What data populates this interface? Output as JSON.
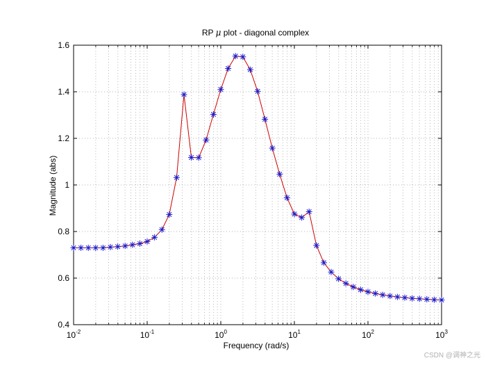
{
  "chart_data": {
    "type": "line",
    "title_prefix": "RP ",
    "title_mu": "μ",
    "title_suffix": " plot - diagonal complex",
    "xlabel": "Frequency  (rad/s)",
    "ylabel": "Magnitude (abs)",
    "xscale": "log",
    "xlim": [
      0.01,
      1000
    ],
    "ylim": [
      0.4,
      1.6
    ],
    "grid": true,
    "x_tick_exponents": [
      "-2",
      "-1",
      "0",
      "1",
      "2",
      "3"
    ],
    "x_tick_base": "10",
    "y_ticks": [
      "0.4",
      "0.6",
      "0.8",
      "1",
      "1.2",
      "1.4",
      "1.6"
    ],
    "series": [
      {
        "name": "mu",
        "line_color": "#cc0000",
        "marker_color": "#1a1acc",
        "marker": "asterisk",
        "x": [
          0.01,
          0.01259,
          0.01585,
          0.01995,
          0.02512,
          0.03162,
          0.03981,
          0.05012,
          0.0631,
          0.07943,
          0.1,
          0.1259,
          0.1585,
          0.1995,
          0.2512,
          0.3162,
          0.3981,
          0.5012,
          0.631,
          0.7943,
          1.0,
          1.259,
          1.585,
          1.995,
          2.512,
          3.162,
          3.981,
          5.012,
          6.31,
          7.943,
          10.0,
          12.59,
          15.85,
          19.95,
          25.12,
          31.62,
          39.81,
          50.12,
          63.1,
          79.43,
          100.0,
          125.9,
          158.5,
          199.5,
          251.2,
          316.2,
          398.1,
          501.2,
          631.0,
          794.3,
          1000.0
        ],
        "y": [
          0.73,
          0.73,
          0.73,
          0.73,
          0.73,
          0.733,
          0.735,
          0.738,
          0.743,
          0.748,
          0.757,
          0.775,
          0.808,
          0.873,
          1.032,
          1.388,
          1.118,
          1.117,
          1.193,
          1.303,
          1.41,
          1.5,
          1.553,
          1.55,
          1.495,
          1.402,
          1.282,
          1.158,
          1.046,
          0.945,
          0.875,
          0.86,
          0.885,
          0.74,
          0.666,
          0.626,
          0.597,
          0.577,
          0.562,
          0.55,
          0.541,
          0.534,
          0.528,
          0.523,
          0.519,
          0.516,
          0.513,
          0.511,
          0.509,
          0.507,
          0.506
        ]
      }
    ]
  },
  "watermark": "CSDN @调神之光"
}
